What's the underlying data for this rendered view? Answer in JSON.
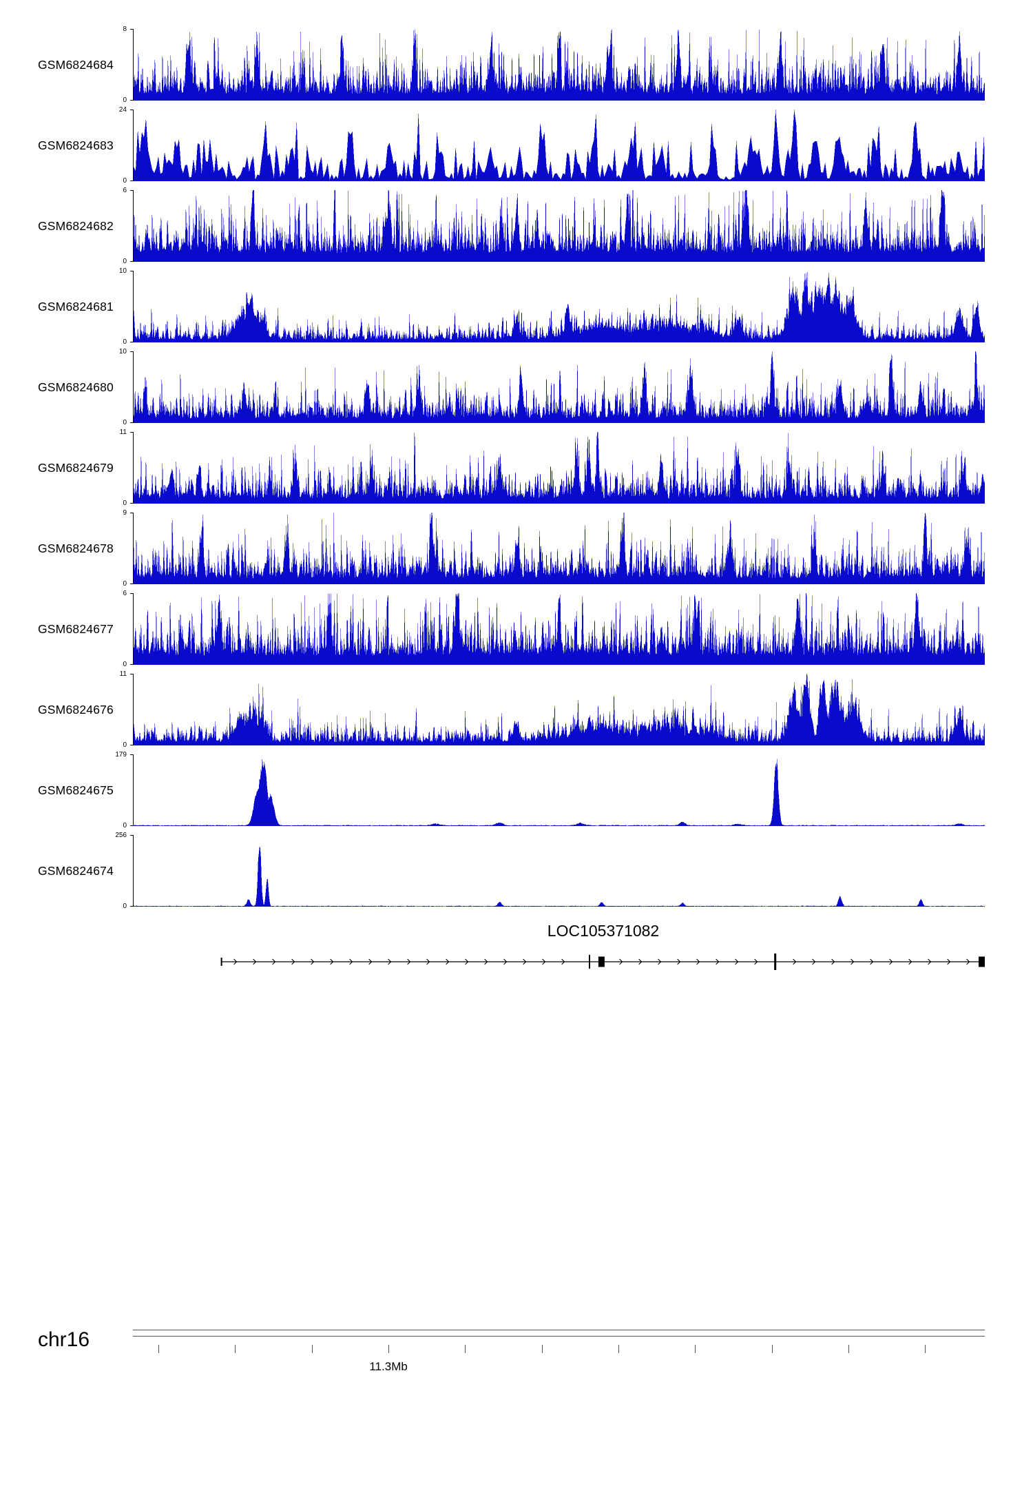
{
  "view": {
    "background": "#ffffff",
    "signal_color": "#0a0acc",
    "axis_color": "#000000"
  },
  "chart_data": {
    "type": "area",
    "description": "Genome-browser read-coverage tracks for 11 GEO samples on chr16 near 11.3 Mb, with gene model LOC105371082 and a genome axis below.",
    "tracks": [
      {
        "name": "GSM6824684",
        "ymin": 0,
        "ymax": 8,
        "style": "dense",
        "base": 0.3,
        "s": 0.7,
        "seed": 101,
        "peaks": [
          [
            0.065,
            0.8,
            0.002
          ],
          [
            0.145,
            0.75,
            0.002
          ],
          [
            0.245,
            0.9,
            0.002
          ],
          [
            0.33,
            0.7,
            0.002
          ],
          [
            0.42,
            0.8,
            0.002
          ],
          [
            0.5,
            1.0,
            0.0015
          ],
          [
            0.56,
            0.8,
            0.002
          ],
          [
            0.64,
            0.75,
            0.002
          ],
          [
            0.76,
            0.85,
            0.002
          ],
          [
            0.88,
            0.9,
            0.002
          ],
          [
            0.97,
            0.75,
            0.002
          ]
        ]
      },
      {
        "name": "GSM6824683",
        "ymin": 0,
        "ymax": 24,
        "style": "triangle",
        "base": 0.13,
        "seed": 102,
        "peaks": [
          [
            0.012,
            0.72,
            0.003
          ],
          [
            0.05,
            0.6,
            0.003
          ],
          [
            0.09,
            0.4,
            0.003
          ],
          [
            0.155,
            0.72,
            0.003
          ],
          [
            0.255,
            1.0,
            0.0025
          ],
          [
            0.3,
            0.45,
            0.003
          ],
          [
            0.36,
            0.5,
            0.003
          ],
          [
            0.42,
            0.45,
            0.003
          ],
          [
            0.48,
            0.55,
            0.003
          ],
          [
            0.54,
            0.5,
            0.003
          ],
          [
            0.585,
            0.65,
            0.003
          ],
          [
            0.62,
            0.55,
            0.003
          ],
          [
            0.68,
            0.5,
            0.003
          ],
          [
            0.73,
            0.55,
            0.004
          ],
          [
            0.755,
            0.85,
            0.003
          ],
          [
            0.775,
            0.9,
            0.003
          ],
          [
            0.8,
            0.75,
            0.003
          ],
          [
            0.83,
            0.6,
            0.004
          ],
          [
            0.87,
            0.55,
            0.003
          ],
          [
            0.92,
            0.6,
            0.003
          ],
          [
            0.97,
            0.45,
            0.003
          ]
        ]
      },
      {
        "name": "GSM6824682",
        "ymin": 0,
        "ymax": 6,
        "style": "dense",
        "base": 0.42,
        "s": 0.55,
        "seed": 103,
        "peaks": [
          [
            0.14,
            1.0,
            0.0015
          ],
          [
            0.3,
            0.9,
            0.002
          ],
          [
            0.45,
            0.85,
            0.002
          ],
          [
            0.58,
            0.8,
            0.002
          ],
          [
            0.72,
            0.85,
            0.002
          ],
          [
            0.86,
            0.8,
            0.002
          ],
          [
            0.95,
            0.9,
            0.002
          ]
        ]
      },
      {
        "name": "GSM6824681",
        "ymin": 0,
        "ymax": 10,
        "style": "dense",
        "base": 0.13,
        "s": 0.7,
        "seed": 104,
        "peaks": [
          [
            0.128,
            0.45,
            0.008
          ],
          [
            0.138,
            0.6,
            0.005
          ],
          [
            0.148,
            0.4,
            0.006
          ],
          [
            0.45,
            0.3,
            0.003
          ],
          [
            0.51,
            0.5,
            0.003
          ],
          [
            0.55,
            0.22,
            0.03
          ],
          [
            0.62,
            0.28,
            0.025
          ],
          [
            0.66,
            0.2,
            0.02
          ],
          [
            0.71,
            0.35,
            0.004
          ],
          [
            0.775,
            0.8,
            0.006
          ],
          [
            0.79,
            0.95,
            0.005
          ],
          [
            0.805,
            0.85,
            0.006
          ],
          [
            0.815,
            1.0,
            0.004
          ],
          [
            0.825,
            0.8,
            0.007
          ],
          [
            0.84,
            0.6,
            0.008
          ],
          [
            0.97,
            0.45,
            0.004
          ],
          [
            0.99,
            0.5,
            0.003
          ]
        ]
      },
      {
        "name": "GSM6824680",
        "ymin": 0,
        "ymax": 10,
        "style": "dense",
        "base": 0.22,
        "s": 0.7,
        "seed": 105,
        "peaks": [
          [
            0.13,
            0.55,
            0.002
          ],
          [
            0.275,
            0.6,
            0.002
          ],
          [
            0.335,
            0.65,
            0.002
          ],
          [
            0.455,
            0.8,
            0.002
          ],
          [
            0.6,
            0.75,
            0.002
          ],
          [
            0.655,
            0.6,
            0.002
          ],
          [
            0.75,
            1.0,
            0.0018
          ],
          [
            0.83,
            0.6,
            0.002
          ],
          [
            0.89,
            0.8,
            0.002
          ],
          [
            0.925,
            0.55,
            0.002
          ],
          [
            0.99,
            0.7,
            0.002
          ]
        ]
      },
      {
        "name": "GSM6824679",
        "ymin": 0,
        "ymax": 11,
        "style": "dense",
        "base": 0.24,
        "s": 0.7,
        "seed": 106,
        "peaks": [
          [
            0.045,
            0.5,
            0.002
          ],
          [
            0.19,
            0.55,
            0.002
          ],
          [
            0.28,
            0.5,
            0.002
          ],
          [
            0.43,
            0.55,
            0.002
          ],
          [
            0.52,
            0.7,
            0.002
          ],
          [
            0.535,
            0.8,
            0.002
          ],
          [
            0.545,
            1.0,
            0.0015
          ],
          [
            0.62,
            0.6,
            0.002
          ],
          [
            0.71,
            0.65,
            0.002
          ],
          [
            0.77,
            0.55,
            0.002
          ],
          [
            0.88,
            0.55,
            0.002
          ],
          [
            0.975,
            0.6,
            0.002
          ]
        ]
      },
      {
        "name": "GSM6824678",
        "ymin": 0,
        "ymax": 9,
        "style": "dense",
        "base": 0.28,
        "s": 0.65,
        "seed": 107,
        "peaks": [
          [
            0.08,
            0.6,
            0.002
          ],
          [
            0.18,
            0.75,
            0.002
          ],
          [
            0.35,
            0.9,
            0.0018
          ],
          [
            0.45,
            0.6,
            0.002
          ],
          [
            0.575,
            0.85,
            0.002
          ],
          [
            0.7,
            0.6,
            0.002
          ],
          [
            0.8,
            0.6,
            0.002
          ],
          [
            0.93,
            1.0,
            0.0015
          ],
          [
            0.98,
            0.55,
            0.002
          ]
        ]
      },
      {
        "name": "GSM6824677",
        "ymin": 0,
        "ymax": 6,
        "style": "dense",
        "base": 0.42,
        "s": 0.55,
        "seed": 108,
        "peaks": [
          [
            0.1,
            0.8,
            0.002
          ],
          [
            0.23,
            0.9,
            0.002
          ],
          [
            0.38,
            0.85,
            0.002
          ],
          [
            0.5,
            1.0,
            0.0015
          ],
          [
            0.66,
            0.9,
            0.002
          ],
          [
            0.78,
            0.85,
            0.002
          ],
          [
            0.92,
            0.9,
            0.002
          ]
        ]
      },
      {
        "name": "GSM6824676",
        "ymin": 0,
        "ymax": 11,
        "style": "dense",
        "base": 0.15,
        "s": 0.7,
        "seed": 109,
        "peaks": [
          [
            0.128,
            0.4,
            0.008
          ],
          [
            0.14,
            0.55,
            0.005
          ],
          [
            0.15,
            0.35,
            0.006
          ],
          [
            0.45,
            0.25,
            0.003
          ],
          [
            0.55,
            0.25,
            0.03
          ],
          [
            0.62,
            0.3,
            0.025
          ],
          [
            0.66,
            0.2,
            0.02
          ],
          [
            0.775,
            0.75,
            0.006
          ],
          [
            0.79,
            0.9,
            0.005
          ],
          [
            0.81,
            1.0,
            0.004
          ],
          [
            0.825,
            0.85,
            0.007
          ],
          [
            0.845,
            0.6,
            0.008
          ],
          [
            0.97,
            0.4,
            0.004
          ]
        ]
      },
      {
        "name": "GSM6824675",
        "ymin": 0,
        "ymax": 179,
        "style": "flat",
        "base": 0.013,
        "seed": 110,
        "peaks": [
          [
            0.145,
            0.5,
            0.004
          ],
          [
            0.152,
            0.97,
            0.005
          ],
          [
            0.161,
            0.45,
            0.004
          ],
          [
            0.355,
            0.025,
            0.004
          ],
          [
            0.43,
            0.04,
            0.004
          ],
          [
            0.525,
            0.035,
            0.004
          ],
          [
            0.645,
            0.05,
            0.003
          ],
          [
            0.71,
            0.02,
            0.004
          ],
          [
            0.755,
            1.0,
            0.0025
          ],
          [
            0.97,
            0.025,
            0.004
          ]
        ]
      },
      {
        "name": "GSM6824674",
        "ymin": 0,
        "ymax": 256,
        "style": "flat",
        "base": 0.011,
        "seed": 111,
        "peaks": [
          [
            0.135,
            0.1,
            0.002
          ],
          [
            0.148,
            1.0,
            0.0018
          ],
          [
            0.157,
            0.42,
            0.0015
          ],
          [
            0.43,
            0.07,
            0.002
          ],
          [
            0.55,
            0.06,
            0.002
          ],
          [
            0.645,
            0.05,
            0.002
          ],
          [
            0.83,
            0.15,
            0.002
          ],
          [
            0.925,
            0.11,
            0.0018
          ]
        ]
      }
    ],
    "gene": {
      "label": "LOC105371082",
      "strand": "+",
      "start": 0.104,
      "end": 1.0,
      "exons": [
        {
          "x": 0.104,
          "w": 2,
          "h": 12
        },
        {
          "x": 0.536,
          "w": 2,
          "h": 20
        },
        {
          "x": 0.55,
          "w": 9,
          "h": 15
        },
        {
          "x": 0.754,
          "w": 3,
          "h": 24
        },
        {
          "x": 0.998,
          "w": 9,
          "h": 15
        }
      ]
    },
    "ruler": {
      "chrom": "chr16",
      "position_label": "11.3Mb",
      "tick_start_fraction": 0.03,
      "tick_step_fraction": 0.09,
      "tick_count": 11,
      "label_tick_index": 3
    }
  }
}
